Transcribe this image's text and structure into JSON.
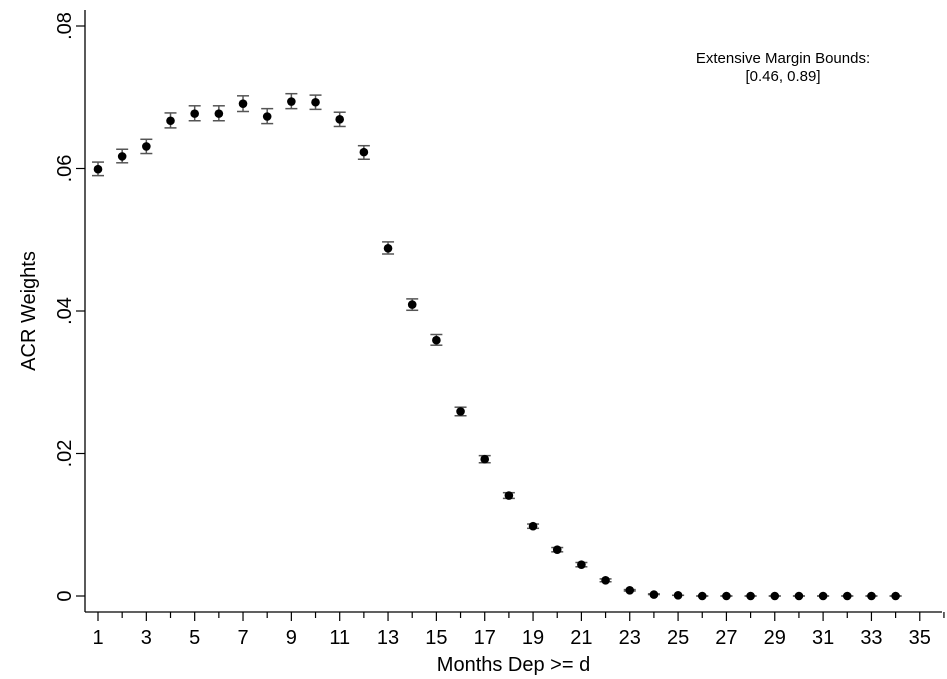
{
  "chart_data": {
    "type": "scatter",
    "xlabel": "Months Dep >= d",
    "ylabel": "ACR Weights",
    "xlim": [
      0.5,
      36
    ],
    "ylim": [
      0,
      0.08
    ],
    "x_ticks": [
      1,
      3,
      5,
      7,
      9,
      11,
      13,
      15,
      17,
      19,
      21,
      23,
      25,
      27,
      29,
      31,
      33,
      35
    ],
    "x_minor_ticks": [
      2,
      4,
      6,
      8,
      10,
      12,
      14,
      16,
      18,
      20,
      22,
      24,
      26,
      28,
      30,
      32,
      34,
      36
    ],
    "y_ticks": [
      {
        "value": 0,
        "label": "0"
      },
      {
        "value": 0.02,
        "label": ".02"
      },
      {
        "value": 0.04,
        "label": ".04"
      },
      {
        "value": 0.06,
        "label": ".06"
      },
      {
        "value": 0.08,
        "label": ".08"
      }
    ],
    "annotation": {
      "line1": "Extensive Margin Bounds:",
      "line2": "[0.46, 0.89]"
    },
    "grid": false,
    "colors": {
      "marker": "#000000",
      "error_bar": "#555555",
      "axis": "#000000"
    },
    "points": [
      {
        "x": 1,
        "y": 0.0599,
        "lo": 0.059,
        "hi": 0.0609
      },
      {
        "x": 2,
        "y": 0.0617,
        "lo": 0.0608,
        "hi": 0.0627
      },
      {
        "x": 3,
        "y": 0.0631,
        "lo": 0.0621,
        "hi": 0.0641
      },
      {
        "x": 4,
        "y": 0.0667,
        "lo": 0.0657,
        "hi": 0.0678
      },
      {
        "x": 5,
        "y": 0.0677,
        "lo": 0.0667,
        "hi": 0.0688
      },
      {
        "x": 6,
        "y": 0.0677,
        "lo": 0.0667,
        "hi": 0.0688
      },
      {
        "x": 7,
        "y": 0.0691,
        "lo": 0.068,
        "hi": 0.0702
      },
      {
        "x": 8,
        "y": 0.0673,
        "lo": 0.0663,
        "hi": 0.0684
      },
      {
        "x": 9,
        "y": 0.0694,
        "lo": 0.0684,
        "hi": 0.0705
      },
      {
        "x": 10,
        "y": 0.0693,
        "lo": 0.0683,
        "hi": 0.0703
      },
      {
        "x": 11,
        "y": 0.0669,
        "lo": 0.0659,
        "hi": 0.0679
      },
      {
        "x": 12,
        "y": 0.0623,
        "lo": 0.0613,
        "hi": 0.0632
      },
      {
        "x": 13,
        "y": 0.0488,
        "lo": 0.048,
        "hi": 0.0497
      },
      {
        "x": 14,
        "y": 0.0409,
        "lo": 0.0401,
        "hi": 0.0417
      },
      {
        "x": 15,
        "y": 0.0359,
        "lo": 0.0352,
        "hi": 0.0367
      },
      {
        "x": 16,
        "y": 0.0259,
        "lo": 0.0253,
        "hi": 0.0265
      },
      {
        "x": 17,
        "y": 0.0192,
        "lo": 0.0187,
        "hi": 0.0197
      },
      {
        "x": 18,
        "y": 0.0141,
        "lo": 0.0137,
        "hi": 0.0145
      },
      {
        "x": 19,
        "y": 0.0098,
        "lo": 0.0095,
        "hi": 0.0101
      },
      {
        "x": 20,
        "y": 0.0065,
        "lo": 0.0062,
        "hi": 0.0068
      },
      {
        "x": 21,
        "y": 0.0044,
        "lo": 0.0041,
        "hi": 0.0047
      },
      {
        "x": 22,
        "y": 0.0022,
        "lo": 0.002,
        "hi": 0.0024
      },
      {
        "x": 23,
        "y": 0.0008,
        "lo": 0.0007,
        "hi": 0.0009
      },
      {
        "x": 24,
        "y": 0.0002,
        "lo": 0.0002,
        "hi": 0.0003
      },
      {
        "x": 25,
        "y": 0.0001,
        "lo": 0.0001,
        "hi": 0.0001
      },
      {
        "x": 26,
        "y": 0.0,
        "lo": 0.0,
        "hi": 0.0
      },
      {
        "x": 27,
        "y": 0.0,
        "lo": 0.0,
        "hi": 0.0
      },
      {
        "x": 28,
        "y": 0.0,
        "lo": 0.0,
        "hi": 0.0
      },
      {
        "x": 29,
        "y": 0.0,
        "lo": 0.0,
        "hi": 0.0
      },
      {
        "x": 30,
        "y": 0.0,
        "lo": 0.0,
        "hi": 0.0
      },
      {
        "x": 31,
        "y": 0.0,
        "lo": 0.0,
        "hi": 0.0
      },
      {
        "x": 32,
        "y": 0.0,
        "lo": 0.0,
        "hi": 0.0
      },
      {
        "x": 33,
        "y": 0.0,
        "lo": 0.0,
        "hi": 0.0
      },
      {
        "x": 34,
        "y": 0.0,
        "lo": 0.0,
        "hi": 0.0
      }
    ]
  }
}
